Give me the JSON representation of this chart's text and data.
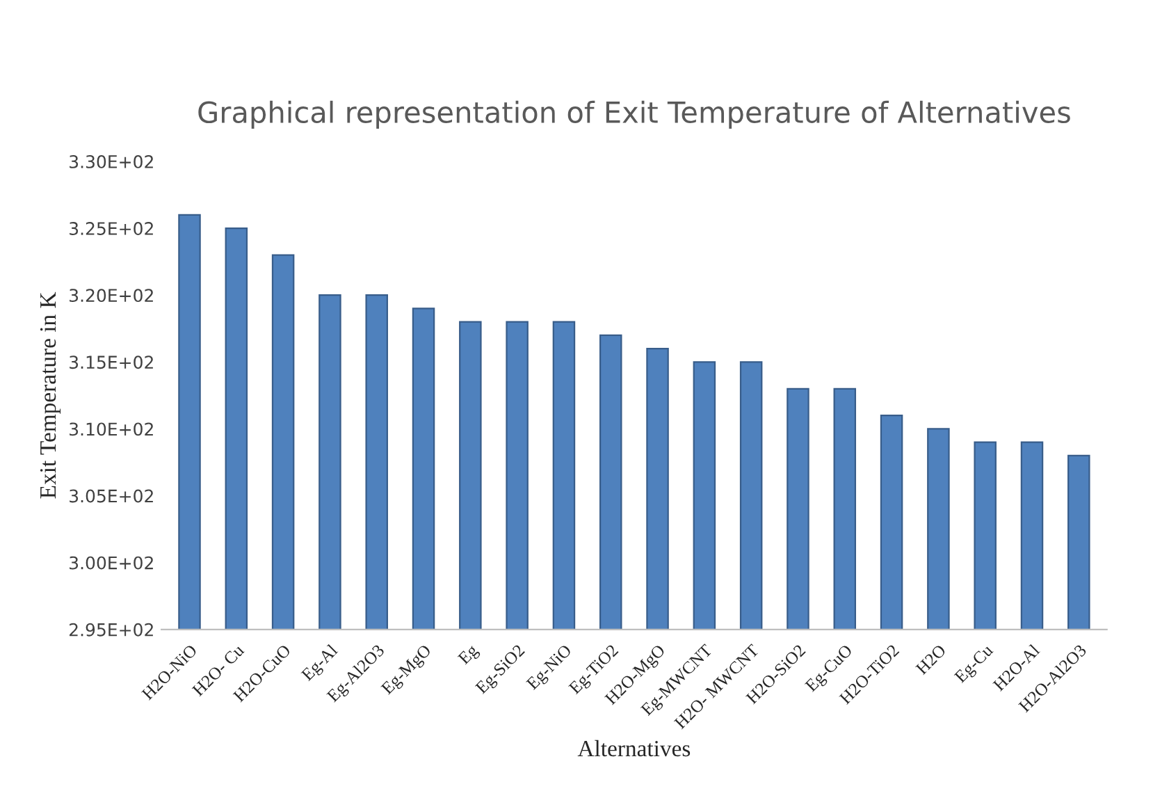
{
  "chart_data": {
    "type": "bar",
    "title": "Graphical representation of Exit Temperature of Alternatives",
    "xlabel": "Alternatives",
    "ylabel": "Exit Temperature in K",
    "categories": [
      "H2O-NiO",
      "H2O- Cu",
      "H2O-CuO",
      "Eg-Al",
      "Eg-Al2O3",
      "Eg-MgO",
      "Eg",
      "Eg-SiO2",
      "Eg-NiO",
      "Eg-TiO2",
      "H2O-MgO",
      "Eg-MWCNT",
      "H2O- MWCNT",
      "H2O-SiO2",
      "Eg-CuO",
      "H2O-TiO2",
      "H2O",
      "Eg-Cu",
      "H2O-Al",
      "H2O-Al2O3"
    ],
    "values": [
      326,
      325,
      323,
      320,
      320,
      319,
      318,
      318,
      318,
      317,
      316,
      315,
      315,
      313,
      313,
      311,
      310,
      309,
      309,
      308
    ],
    "color": "#4f81bd",
    "ylim": [
      295,
      330
    ],
    "yticks": [
      {
        "value": 295,
        "label": "2.95E+02"
      },
      {
        "value": 300,
        "label": "3.00E+02"
      },
      {
        "value": 305,
        "label": "3.05E+02"
      },
      {
        "value": 310,
        "label": "3.10E+02"
      },
      {
        "value": 315,
        "label": "3.15E+02"
      },
      {
        "value": 320,
        "label": "3.20E+02"
      },
      {
        "value": 325,
        "label": "3.25E+02"
      },
      {
        "value": 330,
        "label": "3.30E+02"
      }
    ],
    "grid": false
  }
}
